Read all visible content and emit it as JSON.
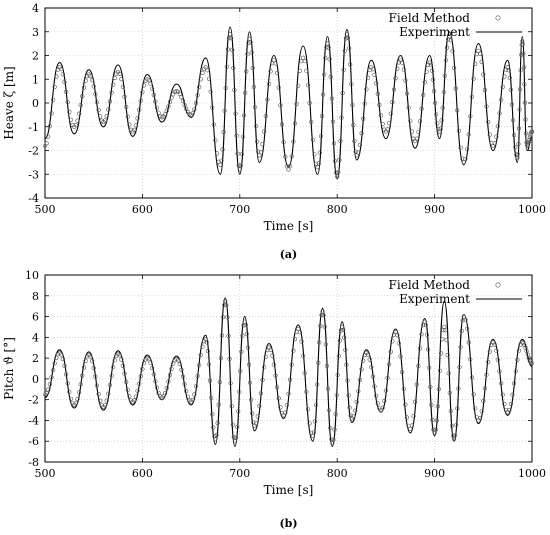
{
  "chart_data": [
    {
      "type": "line",
      "caption": "(a)",
      "xlabel": "Time [s]",
      "ylabel": "Heave ζ [m]",
      "xlim": [
        500,
        1000
      ],
      "ylim": [
        -4,
        4
      ],
      "xticks": [
        500,
        600,
        700,
        800,
        900,
        1000
      ],
      "yticks": [
        -4,
        -3,
        -2,
        -1,
        0,
        1,
        2,
        3,
        4
      ],
      "legend_position": "top-right",
      "grid": true,
      "series": [
        {
          "name": "Field Method",
          "style": "markers",
          "marker": "circle",
          "x": [
            500,
            515,
            530,
            545,
            560,
            575,
            590,
            605,
            620,
            635,
            650,
            665,
            680,
            690,
            700,
            710,
            720,
            735,
            750,
            765,
            780,
            790,
            800,
            810,
            820,
            835,
            850,
            865,
            880,
            895,
            905,
            915,
            930,
            945,
            960,
            975,
            985,
            990,
            995,
            1000
          ],
          "y": [
            -1.8,
            1.5,
            -1.0,
            1.2,
            -0.8,
            1.3,
            -1.2,
            1.0,
            -0.6,
            0.5,
            -0.5,
            1.5,
            -2.6,
            2.9,
            -2.8,
            2.7,
            -2.2,
            1.8,
            -2.8,
            1.9,
            -2.7,
            2.5,
            -3.1,
            2.9,
            -2.2,
            1.5,
            -1.2,
            1.8,
            -1.6,
            1.7,
            -1.2,
            2.8,
            -2.5,
            2.2,
            -1.8,
            1.5,
            -2.3,
            2.6,
            -1.8,
            -1.2
          ]
        },
        {
          "name": "Experiment",
          "style": "line",
          "x": [
            500,
            515,
            530,
            545,
            560,
            575,
            590,
            605,
            620,
            635,
            650,
            665,
            680,
            690,
            700,
            710,
            720,
            735,
            750,
            765,
            780,
            790,
            800,
            810,
            820,
            835,
            850,
            865,
            880,
            895,
            905,
            915,
            930,
            945,
            960,
            975,
            985,
            990,
            995,
            1000
          ],
          "y": [
            -1.5,
            1.7,
            -1.3,
            1.4,
            -1.0,
            1.6,
            -1.4,
            1.2,
            -0.8,
            0.8,
            -0.6,
            1.9,
            -3.0,
            3.2,
            -3.0,
            3.0,
            -2.5,
            2.0,
            -2.7,
            2.4,
            -3.0,
            2.8,
            -3.2,
            3.1,
            -2.4,
            1.8,
            -1.5,
            2.0,
            -1.9,
            2.0,
            -1.5,
            3.0,
            -2.6,
            2.5,
            -2.0,
            1.8,
            -2.5,
            2.8,
            -2.0,
            -1.4
          ]
        }
      ]
    },
    {
      "type": "line",
      "caption": "(b)",
      "xlabel": "Time [s]",
      "ylabel": "Pitch ϑ [°]",
      "xlim": [
        500,
        1000
      ],
      "ylim": [
        -8,
        10
      ],
      "xticks": [
        500,
        600,
        700,
        800,
        900,
        1000
      ],
      "yticks": [
        -8,
        -6,
        -4,
        -2,
        0,
        2,
        4,
        6,
        8,
        10
      ],
      "legend_position": "top-right",
      "grid": true,
      "series": [
        {
          "name": "Field Method",
          "style": "markers",
          "marker": "circle",
          "x": [
            500,
            515,
            530,
            545,
            560,
            575,
            590,
            605,
            620,
            635,
            650,
            665,
            675,
            685,
            695,
            705,
            715,
            730,
            745,
            760,
            775,
            785,
            795,
            805,
            815,
            830,
            845,
            860,
            875,
            890,
            900,
            910,
            920,
            930,
            945,
            960,
            975,
            990,
            1000
          ],
          "y": [
            -1.5,
            2.5,
            -2.5,
            2.3,
            -2.7,
            2.4,
            -2.2,
            2.0,
            -1.8,
            1.9,
            -2.2,
            3.8,
            -5.8,
            7.5,
            -6.0,
            5.5,
            -4.5,
            3.0,
            -3.5,
            4.8,
            -5.5,
            6.5,
            -6.2,
            5.0,
            -3.8,
            2.5,
            -3.0,
            4.5,
            -4.8,
            5.5,
            -5.2,
            5.0,
            -5.8,
            6.0,
            -4.0,
            3.5,
            -3.2,
            3.5,
            1.5
          ]
        },
        {
          "name": "Experiment",
          "style": "line",
          "x": [
            500,
            515,
            530,
            545,
            560,
            575,
            590,
            605,
            620,
            635,
            650,
            665,
            675,
            685,
            695,
            705,
            715,
            730,
            745,
            760,
            775,
            785,
            795,
            805,
            815,
            830,
            845,
            860,
            875,
            890,
            900,
            910,
            920,
            930,
            945,
            960,
            975,
            990,
            1000
          ],
          "y": [
            -1.8,
            2.8,
            -2.8,
            2.6,
            -3.0,
            2.7,
            -2.5,
            2.3,
            -2.0,
            2.2,
            -2.5,
            4.2,
            -6.3,
            7.8,
            -6.5,
            6.0,
            -5.0,
            3.4,
            -3.8,
            5.2,
            -6.0,
            6.8,
            -6.5,
            5.5,
            -4.2,
            2.8,
            -3.2,
            4.8,
            -5.2,
            5.8,
            -5.5,
            7.5,
            -6.0,
            6.2,
            -4.3,
            3.8,
            -3.5,
            3.8,
            1.2
          ]
        }
      ]
    }
  ]
}
